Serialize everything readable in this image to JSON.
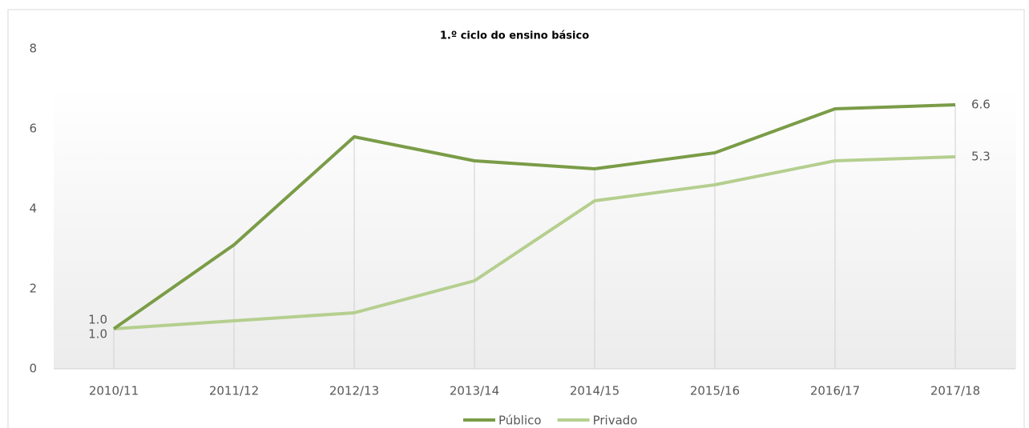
{
  "chart_data": {
    "type": "line",
    "title": "1.º ciclo do ensino básico",
    "categories": [
      "2010/11",
      "2011/12",
      "2012/13",
      "2013/14",
      "2014/15",
      "2015/16",
      "2016/17",
      "2017/18"
    ],
    "series": [
      {
        "name": "Público",
        "color": "#7a9c47",
        "values": [
          1.0,
          3.1,
          5.8,
          5.2,
          5.0,
          5.4,
          6.5,
          6.6
        ],
        "value_labels": [
          "1.0",
          null,
          null,
          null,
          null,
          null,
          null,
          "6.6"
        ]
      },
      {
        "name": "Privado",
        "color": "#b5cf8f",
        "values": [
          1.0,
          1.2,
          1.4,
          2.2,
          4.2,
          4.6,
          5.2,
          5.3
        ],
        "value_labels": [
          "1.0",
          null,
          null,
          null,
          null,
          null,
          null,
          "5.3"
        ]
      }
    ],
    "ylim": [
      0,
      8
    ],
    "yticks": [
      0,
      2,
      4,
      6,
      8
    ],
    "drop_lines": true,
    "legend": "bottom"
  }
}
